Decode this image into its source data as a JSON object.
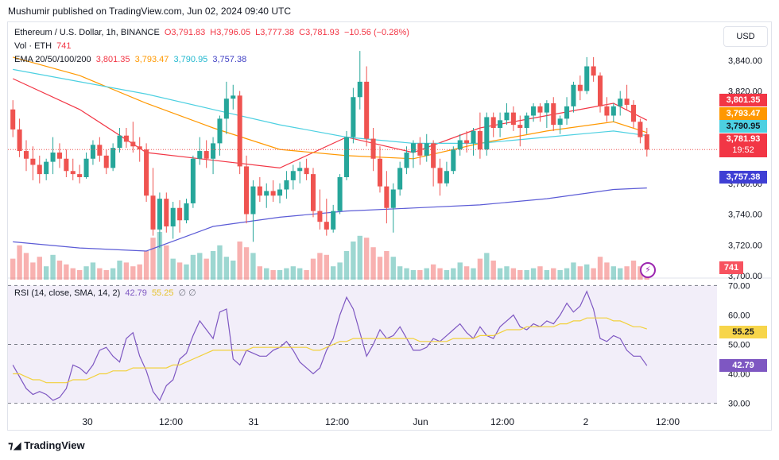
{
  "publisher": "Mushumir published on TradingView.com, Jun 02, 2024 09:40 UTC",
  "legend": {
    "symbol": "Ethereum / U.S. Dollar, 1h, BINANCE",
    "open": "O3,791.83",
    "high": "H3,796.05",
    "low": "L3,777.38",
    "close": "C3,781.93",
    "change": "−10.56 (−0.28%)",
    "volume_label": "Vol · ETH",
    "volume_value": "741",
    "ema_label": "EMA 20/50/100/200",
    "ema20": "3,801.35",
    "ema50": "3,793.47",
    "ema100": "3,790.95",
    "ema200": "3,757.38",
    "rsi_label": "RSI (14, close, SMA, 14, 2)",
    "rsi_value": "42.79",
    "rsi_sma": "55.25",
    "rsi_extra": "∅ ∅"
  },
  "currency_button": "USD",
  "price_tags": {
    "ema20": "3,801.35",
    "ema50": "3,793.47",
    "ema100": "3,790.95",
    "last": "3,781.93",
    "countdown": "19:52",
    "ema200": "3,757.38",
    "volume": "741",
    "rsi_sma": "55.25",
    "rsi": "42.79"
  },
  "footer": "TradingView",
  "colors": {
    "up": "#26a69a",
    "down": "#ef5350",
    "ema20": "#f23645",
    "ema50": "#ff9800",
    "ema100": "#4dd0e1",
    "ema200": "#5b5bd6",
    "rsi": "#7e57c2",
    "rsi_sma": "#f2d13d"
  },
  "chart_data": [
    {
      "type": "candlestick",
      "title": "Ethereum / U.S. Dollar, 1h, BINANCE",
      "x_ticks": [
        "30",
        "12:00",
        "31",
        "12:00",
        "Jun",
        "12:00",
        "2",
        "12:00"
      ],
      "y_ticks": [
        "3,840.00",
        "3,820.00",
        "3,800.00",
        "3,780.00",
        "3,760.00",
        "3,740.00",
        "3,720.00",
        "3,700.00"
      ],
      "ylim": [
        3700,
        3844
      ],
      "candles": [
        [
          3808,
          3814,
          3790,
          3795
        ],
        [
          3795,
          3802,
          3777,
          3781
        ],
        [
          3781,
          3788,
          3768,
          3776
        ],
        [
          3776,
          3784,
          3762,
          3772
        ],
        [
          3772,
          3778,
          3760,
          3766
        ],
        [
          3766,
          3776,
          3762,
          3774
        ],
        [
          3774,
          3790,
          3766,
          3780
        ],
        [
          3780,
          3786,
          3770,
          3776
        ],
        [
          3776,
          3782,
          3764,
          3768
        ],
        [
          3768,
          3776,
          3762,
          3766
        ],
        [
          3766,
          3772,
          3760,
          3764
        ],
        [
          3764,
          3780,
          3763,
          3776
        ],
        [
          3776,
          3788,
          3772,
          3785
        ],
        [
          3785,
          3790,
          3774,
          3778
        ],
        [
          3778,
          3782,
          3766,
          3770
        ],
        [
          3770,
          3786,
          3768,
          3783
        ],
        [
          3783,
          3796,
          3780,
          3791
        ],
        [
          3791,
          3796,
          3783,
          3787
        ],
        [
          3787,
          3800,
          3780,
          3784
        ],
        [
          3784,
          3790,
          3774,
          3782
        ],
        [
          3782,
          3786,
          3748,
          3752
        ],
        [
          3752,
          3770,
          3726,
          3730
        ],
        [
          3730,
          3754,
          3718,
          3750
        ],
        [
          3750,
          3754,
          3728,
          3732
        ],
        [
          3732,
          3748,
          3724,
          3744
        ],
        [
          3744,
          3749,
          3728,
          3736
        ],
        [
          3736,
          3750,
          3734,
          3747
        ],
        [
          3747,
          3778,
          3744,
          3776
        ],
        [
          3776,
          3790,
          3772,
          3781
        ],
        [
          3781,
          3788,
          3770,
          3776
        ],
        [
          3776,
          3790,
          3766,
          3786
        ],
        [
          3786,
          3804,
          3778,
          3802
        ],
        [
          3802,
          3826,
          3792,
          3815
        ],
        [
          3815,
          3824,
          3808,
          3817
        ],
        [
          3817,
          3820,
          3766,
          3771
        ],
        [
          3771,
          3778,
          3734,
          3740
        ],
        [
          3740,
          3762,
          3722,
          3758
        ],
        [
          3758,
          3764,
          3748,
          3752
        ],
        [
          3752,
          3760,
          3744,
          3755
        ],
        [
          3755,
          3762,
          3748,
          3752
        ],
        [
          3752,
          3760,
          3747,
          3756
        ],
        [
          3756,
          3768,
          3750,
          3762
        ],
        [
          3762,
          3772,
          3756,
          3768
        ],
        [
          3768,
          3774,
          3760,
          3770
        ],
        [
          3770,
          3776,
          3762,
          3766
        ],
        [
          3766,
          3770,
          3738,
          3742
        ],
        [
          3742,
          3756,
          3730,
          3735
        ],
        [
          3735,
          3750,
          3726,
          3730
        ],
        [
          3730,
          3746,
          3728,
          3742
        ],
        [
          3742,
          3766,
          3740,
          3764
        ],
        [
          3764,
          3794,
          3762,
          3790
        ],
        [
          3790,
          3822,
          3786,
          3816
        ],
        [
          3816,
          3846,
          3808,
          3826
        ],
        [
          3826,
          3836,
          3784,
          3789
        ],
        [
          3789,
          3796,
          3768,
          3776
        ],
        [
          3776,
          3784,
          3754,
          3758
        ],
        [
          3758,
          3768,
          3734,
          3744
        ],
        [
          3744,
          3760,
          3728,
          3756
        ],
        [
          3756,
          3774,
          3752,
          3770
        ],
        [
          3770,
          3784,
          3766,
          3780
        ],
        [
          3780,
          3788,
          3770,
          3786
        ],
        [
          3786,
          3790,
          3772,
          3778
        ],
        [
          3778,
          3792,
          3774,
          3786
        ],
        [
          3786,
          3788,
          3758,
          3770
        ],
        [
          3770,
          3776,
          3752,
          3760
        ],
        [
          3760,
          3774,
          3758,
          3768
        ],
        [
          3768,
          3784,
          3766,
          3782
        ],
        [
          3782,
          3792,
          3778,
          3788
        ],
        [
          3788,
          3794,
          3780,
          3786
        ],
        [
          3786,
          3796,
          3778,
          3794
        ],
        [
          3794,
          3806,
          3776,
          3782
        ],
        [
          3782,
          3806,
          3778,
          3803
        ],
        [
          3803,
          3806,
          3790,
          3796
        ],
        [
          3796,
          3806,
          3790,
          3801
        ],
        [
          3801,
          3812,
          3798,
          3806
        ],
        [
          3806,
          3810,
          3794,
          3798
        ],
        [
          3798,
          3804,
          3784,
          3796
        ],
        [
          3796,
          3806,
          3792,
          3804
        ],
        [
          3804,
          3812,
          3800,
          3810
        ],
        [
          3810,
          3812,
          3800,
          3806
        ],
        [
          3806,
          3814,
          3796,
          3812
        ],
        [
          3812,
          3816,
          3794,
          3798
        ],
        [
          3798,
          3804,
          3792,
          3802
        ],
        [
          3802,
          3816,
          3798,
          3810
        ],
        [
          3810,
          3826,
          3806,
          3824
        ],
        [
          3824,
          3830,
          3814,
          3820
        ],
        [
          3820,
          3842,
          3818,
          3836
        ],
        [
          3836,
          3842,
          3826,
          3830
        ],
        [
          3830,
          3832,
          3806,
          3810
        ],
        [
          3810,
          3816,
          3800,
          3804
        ],
        [
          3804,
          3812,
          3800,
          3810
        ],
        [
          3810,
          3820,
          3804,
          3815
        ],
        [
          3815,
          3824,
          3808,
          3811
        ],
        [
          3811,
          3814,
          3796,
          3800
        ],
        [
          3800,
          3802,
          3786,
          3790
        ],
        [
          3791.83,
          3796.05,
          3777.38,
          3781.93
        ]
      ],
      "volume": [
        22,
        36,
        28,
        18,
        24,
        14,
        26,
        20,
        16,
        12,
        10,
        14,
        18,
        12,
        10,
        12,
        20,
        18,
        14,
        16,
        30,
        44,
        50,
        36,
        22,
        18,
        16,
        26,
        28,
        22,
        30,
        36,
        24,
        20,
        40,
        34,
        28,
        14,
        12,
        10,
        10,
        12,
        14,
        12,
        10,
        22,
        28,
        26,
        14,
        18,
        30,
        40,
        46,
        44,
        34,
        24,
        30,
        24,
        14,
        12,
        10,
        10,
        12,
        16,
        12,
        10,
        12,
        18,
        14,
        12,
        22,
        28,
        20,
        12,
        14,
        12,
        10,
        10,
        12,
        14,
        10,
        12,
        10,
        12,
        18,
        14,
        16,
        12,
        24,
        18,
        14,
        12,
        14,
        20,
        14,
        10
      ],
      "volume_max": 50,
      "volume_last": 741,
      "ema": {
        "EMA 20": {
          "last": 3801.35,
          "path": [
            [
              0,
              3828
            ],
            [
              10,
              3808
            ],
            [
              20,
              3780
            ],
            [
              30,
              3775
            ],
            [
              40,
              3770
            ],
            [
              50,
              3790
            ],
            [
              60,
              3780
            ],
            [
              70,
              3796
            ],
            [
              80,
              3804
            ],
            [
              90,
              3812
            ],
            [
              95,
              3801
            ]
          ]
        },
        "EMA 50": {
          "last": 3793.47,
          "path": [
            [
              0,
              3842
            ],
            [
              10,
              3830
            ],
            [
              20,
              3812
            ],
            [
              30,
              3796
            ],
            [
              40,
              3782
            ],
            [
              50,
              3778
            ],
            [
              60,
              3776
            ],
            [
              70,
              3786
            ],
            [
              80,
              3794
            ],
            [
              90,
              3800
            ],
            [
              95,
              3793
            ]
          ]
        },
        "EMA 100": {
          "last": 3790.95,
          "path": [
            [
              0,
              3834
            ],
            [
              10,
              3826
            ],
            [
              20,
              3818
            ],
            [
              30,
              3808
            ],
            [
              40,
              3798
            ],
            [
              50,
              3790
            ],
            [
              60,
              3786
            ],
            [
              70,
              3786
            ],
            [
              80,
              3790
            ],
            [
              90,
              3794
            ],
            [
              95,
              3791
            ]
          ]
        },
        "EMA 200": {
          "last": 3757.38,
          "path": [
            [
              0,
              3722
            ],
            [
              10,
              3718
            ],
            [
              20,
              3716
            ],
            [
              30,
              3732
            ],
            [
              40,
              3738
            ],
            [
              50,
              3742
            ],
            [
              60,
              3744
            ],
            [
              70,
              3746
            ],
            [
              80,
              3750
            ],
            [
              90,
              3756
            ],
            [
              95,
              3757
            ]
          ]
        }
      },
      "last_price": 3781.93
    },
    {
      "type": "line",
      "title": "RSI (14, close, SMA, 14, 2)",
      "y_ticks": [
        "70.00",
        "60.00",
        "50.00",
        "40.00",
        "30.00"
      ],
      "ylim": [
        28,
        72
      ],
      "bands": [
        30,
        50,
        70
      ],
      "series": [
        {
          "name": "RSI",
          "values": [
            43,
            39,
            35,
            33,
            34,
            33,
            31,
            32,
            35,
            43,
            42,
            40,
            43,
            48,
            49,
            46,
            44,
            52,
            54,
            46,
            41,
            34,
            31,
            36,
            38,
            45,
            47,
            53,
            58,
            55,
            52,
            61,
            62,
            45,
            43,
            48,
            47,
            46,
            46,
            48,
            49,
            51,
            48,
            44,
            42,
            40,
            42,
            48,
            52,
            60,
            66,
            62,
            54,
            46,
            50,
            55,
            52,
            53,
            56,
            52,
            48,
            48,
            49,
            52,
            51,
            53,
            55,
            57,
            54,
            52,
            56,
            53,
            52,
            56,
            58,
            60,
            56,
            55,
            57,
            56,
            58,
            57,
            60,
            64,
            61,
            63,
            68,
            62,
            52,
            51,
            53,
            52,
            48,
            46,
            46,
            42.79
          ]
        },
        {
          "name": "SMA",
          "values": [
            40,
            40,
            39,
            38,
            38,
            37,
            37,
            37,
            37,
            38,
            38,
            38,
            39,
            40,
            40,
            41,
            41,
            41,
            42,
            42,
            42,
            42,
            42,
            42,
            43,
            43,
            44,
            45,
            46,
            47,
            48,
            48,
            48,
            48,
            48,
            48,
            49,
            49,
            49,
            49,
            49,
            49,
            49,
            49,
            49,
            48,
            48,
            49,
            50,
            51,
            51,
            52,
            52,
            52,
            52,
            52,
            52,
            52,
            52,
            52,
            52,
            51,
            51,
            51,
            51,
            51,
            52,
            52,
            52,
            52,
            53,
            53,
            53,
            54,
            55,
            55,
            55,
            56,
            56,
            56,
            56,
            56,
            57,
            57,
            58,
            58,
            59,
            59,
            59,
            59,
            58,
            58,
            57,
            56,
            56,
            55.25
          ]
        }
      ]
    }
  ]
}
